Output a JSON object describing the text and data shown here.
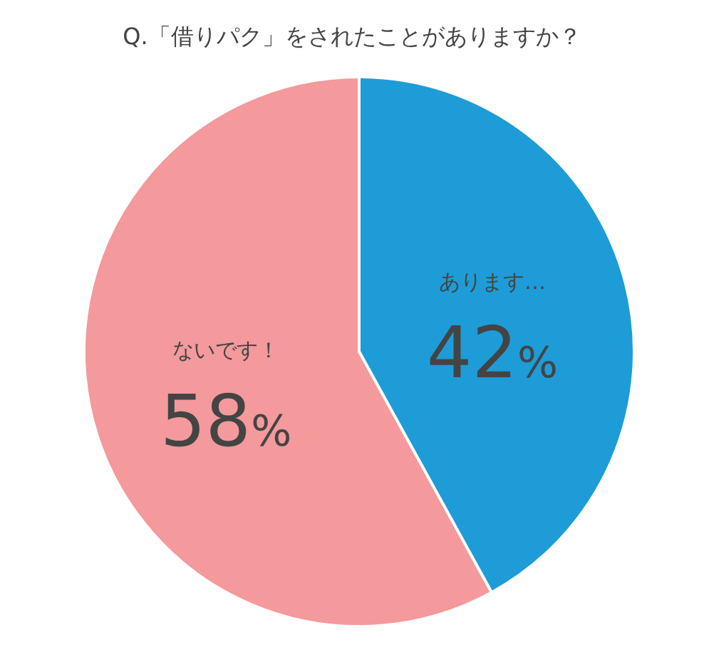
{
  "chart_data": {
    "type": "pie",
    "title": "Q.「借りパク」をされたことがありますか？",
    "categories": [
      "あります…",
      "ないです！"
    ],
    "values": [
      42,
      58
    ],
    "value_labels": [
      "42%",
      "58%"
    ],
    "colors": [
      "#1e9cd7",
      "#f4999c"
    ],
    "legend": false
  }
}
